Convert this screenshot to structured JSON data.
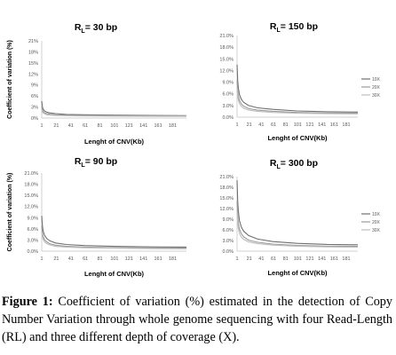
{
  "chart_data": [
    {
      "type": "line",
      "title_main": "R",
      "title_sub": "L",
      "title_rest": "= 30 bp",
      "xlabel": "Lenght of CNV(Kb)",
      "ylabel": "Coefficient of variation (%)",
      "x_ticks": [
        "1",
        "21",
        "41",
        "61",
        "81",
        "101",
        "121",
        "141",
        "161",
        "181"
      ],
      "y_ticks": [
        "0%",
        "3%",
        "6%",
        "9%",
        "12%",
        "15%",
        "18%",
        "21%"
      ],
      "ylim": [
        0,
        21
      ],
      "legend": [],
      "series": [
        {
          "x": [
            1,
            2,
            3,
            5,
            8,
            12,
            20,
            35,
            60,
            100,
            150,
            200
          ],
          "values": [
            4.6,
            3.0,
            2.4,
            1.9,
            1.6,
            1.4,
            1.2,
            1.0,
            0.9,
            0.8,
            0.7,
            0.65
          ]
        },
        {
          "x": [
            1,
            2,
            3,
            5,
            8,
            12,
            20,
            35,
            60,
            100,
            150,
            200
          ],
          "values": [
            3.2,
            2.2,
            1.8,
            1.4,
            1.2,
            1.05,
            0.9,
            0.8,
            0.7,
            0.65,
            0.6,
            0.55
          ]
        },
        {
          "x": [
            1,
            2,
            3,
            5,
            8,
            12,
            20,
            35,
            60,
            100,
            150,
            200
          ],
          "values": [
            2.4,
            1.7,
            1.4,
            1.1,
            0.9,
            0.8,
            0.7,
            0.6,
            0.55,
            0.5,
            0.45,
            0.45
          ]
        }
      ]
    },
    {
      "type": "line",
      "title_main": "R",
      "title_sub": "L",
      "title_rest": "= 150 bp",
      "xlabel": "Lenght of CNV(Kb)",
      "ylabel": "",
      "x_ticks": [
        "1",
        "21",
        "41",
        "61",
        "81",
        "101",
        "121",
        "141",
        "161",
        "181"
      ],
      "y_ticks": [
        "0.0%",
        "3.0%",
        "6.0%",
        "9.0%",
        "12.0%",
        "15.0%",
        "18.0%",
        "21.0%"
      ],
      "ylim": [
        0,
        21
      ],
      "legend": [
        "10X",
        "20X",
        "30X"
      ],
      "series": [
        {
          "name": "10X",
          "x": [
            1,
            2,
            3,
            5,
            8,
            12,
            20,
            35,
            60,
            100,
            150,
            200
          ],
          "values": [
            13.5,
            9.5,
            7.6,
            5.8,
            4.6,
            3.8,
            3.0,
            2.4,
            2.0,
            1.6,
            1.4,
            1.3
          ]
        },
        {
          "name": "20X",
          "x": [
            1,
            2,
            3,
            5,
            8,
            12,
            20,
            35,
            60,
            100,
            150,
            200
          ],
          "values": [
            9.5,
            6.8,
            5.5,
            4.3,
            3.4,
            2.8,
            2.2,
            1.8,
            1.5,
            1.2,
            1.05,
            1.0
          ]
        },
        {
          "name": "30X",
          "x": [
            1,
            2,
            3,
            5,
            8,
            12,
            20,
            35,
            60,
            100,
            150,
            200
          ],
          "values": [
            7.6,
            5.5,
            4.4,
            3.5,
            2.8,
            2.3,
            1.8,
            1.5,
            1.2,
            1.0,
            0.9,
            0.85
          ]
        }
      ]
    },
    {
      "type": "line",
      "title_main": "R",
      "title_sub": "L",
      "title_rest": "= 90 bp",
      "xlabel": "Lenght of CNV(Kb)",
      "ylabel": "Coefficient of variation (%)",
      "x_ticks": [
        "1",
        "21",
        "41",
        "61",
        "81",
        "101",
        "121",
        "141",
        "161",
        "181"
      ],
      "y_ticks": [
        "0.0%",
        "3.0%",
        "6.0%",
        "9.0%",
        "12.0%",
        "15.0%",
        "18.0%",
        "21.0%"
      ],
      "ylim": [
        0,
        21
      ],
      "legend": [],
      "series": [
        {
          "x": [
            1,
            2,
            3,
            5,
            8,
            12,
            20,
            35,
            60,
            100,
            150,
            200
          ],
          "values": [
            9.5,
            6.8,
            5.4,
            4.2,
            3.4,
            2.8,
            2.2,
            1.8,
            1.5,
            1.3,
            1.15,
            1.1
          ]
        },
        {
          "x": [
            1,
            2,
            3,
            5,
            8,
            12,
            20,
            35,
            60,
            100,
            150,
            200
          ],
          "values": [
            6.8,
            4.9,
            3.9,
            3.0,
            2.5,
            2.0,
            1.6,
            1.3,
            1.1,
            0.95,
            0.85,
            0.8
          ]
        },
        {
          "x": [
            1,
            2,
            3,
            5,
            8,
            12,
            20,
            35,
            60,
            100,
            150,
            200
          ],
          "values": [
            5.4,
            3.9,
            3.2,
            2.5,
            2.0,
            1.7,
            1.3,
            1.1,
            0.9,
            0.8,
            0.7,
            0.65
          ]
        }
      ]
    },
    {
      "type": "line",
      "title_main": "R",
      "title_sub": "L",
      "title_rest": "= 300 bp",
      "xlabel": "Lenght of CNV(Kb)",
      "ylabel": "",
      "x_ticks": [
        "1",
        "21",
        "41",
        "61",
        "81",
        "101",
        "121",
        "141",
        "161",
        "181"
      ],
      "y_ticks": [
        "0.0%",
        "3.0%",
        "6.0%",
        "9.0%",
        "12.0%",
        "15.0%",
        "18.0%",
        "21.0%"
      ],
      "ylim": [
        0,
        21
      ],
      "legend": [
        "10X",
        "20X",
        "30X"
      ],
      "series": [
        {
          "name": "10X",
          "x": [
            1,
            2,
            3,
            5,
            8,
            12,
            20,
            35,
            60,
            100,
            150,
            200
          ],
          "values": [
            20.0,
            14.2,
            11.4,
            8.6,
            6.8,
            5.6,
            4.4,
            3.4,
            2.7,
            2.2,
            1.9,
            1.8
          ]
        },
        {
          "name": "20X",
          "x": [
            1,
            2,
            3,
            5,
            8,
            12,
            20,
            35,
            60,
            100,
            150,
            200
          ],
          "values": [
            14.2,
            10.0,
            8.0,
            6.2,
            4.9,
            4.0,
            3.1,
            2.5,
            2.0,
            1.6,
            1.4,
            1.35
          ]
        },
        {
          "name": "30X",
          "x": [
            1,
            2,
            3,
            5,
            8,
            12,
            20,
            35,
            60,
            100,
            150,
            200
          ],
          "values": [
            11.4,
            8.1,
            6.5,
            5.0,
            4.0,
            3.3,
            2.6,
            2.1,
            1.7,
            1.4,
            1.2,
            1.15
          ]
        }
      ]
    }
  ],
  "caption": {
    "label": "Figure 1:",
    "text": " Coefficient of variation (%) estimated in the detection of Copy Number Variation through whole genome sequencing with four Read-Length (RL) and three different depth of coverage (X)."
  },
  "colors": {
    "series": [
      "#6f6f6f",
      "#9a9a9a",
      "#bdbdbd"
    ],
    "axis": "#d0d0d0",
    "text": "#555555"
  }
}
